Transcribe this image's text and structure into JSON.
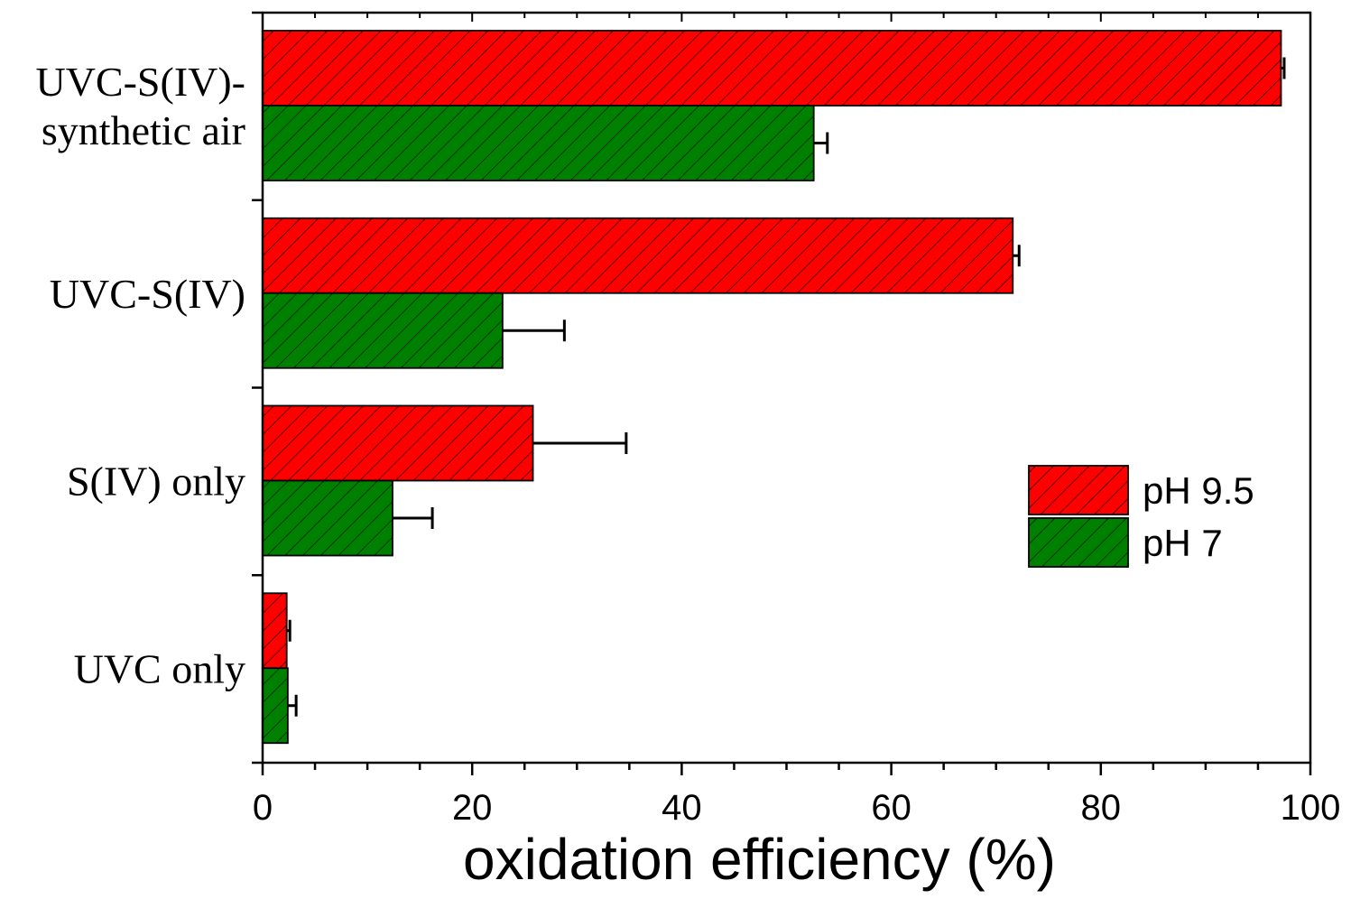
{
  "chart_data": {
    "type": "bar",
    "orientation": "horizontal",
    "title": "",
    "xlabel": "oxidation efficiency (%)",
    "ylabel": "",
    "xlim": [
      0,
      100
    ],
    "x_ticks": [
      "0",
      "20",
      "40",
      "60",
      "80",
      "100"
    ],
    "categories": [
      [
        "UVC-S(IV)-",
        "synthetic air"
      ],
      [
        "UVC-S(IV)"
      ],
      [
        "S(IV) only"
      ],
      [
        "UVC only"
      ]
    ],
    "series": [
      {
        "name": "pH 9.5",
        "color": "#ff0000",
        "values": [
          97.2,
          71.6,
          25.8,
          2.3
        ],
        "errors": [
          0.3,
          0.6,
          8.9,
          0.3
        ]
      },
      {
        "name": "pH 7",
        "color": "#008000",
        "values": [
          52.6,
          22.9,
          12.4,
          2.4
        ],
        "errors": [
          1.3,
          5.9,
          3.8,
          0.8
        ]
      }
    ],
    "pattern": "diagonal-hatch",
    "legend": {
      "position": "right-middle",
      "entries": [
        "pH 9.5",
        "pH 7"
      ]
    }
  }
}
